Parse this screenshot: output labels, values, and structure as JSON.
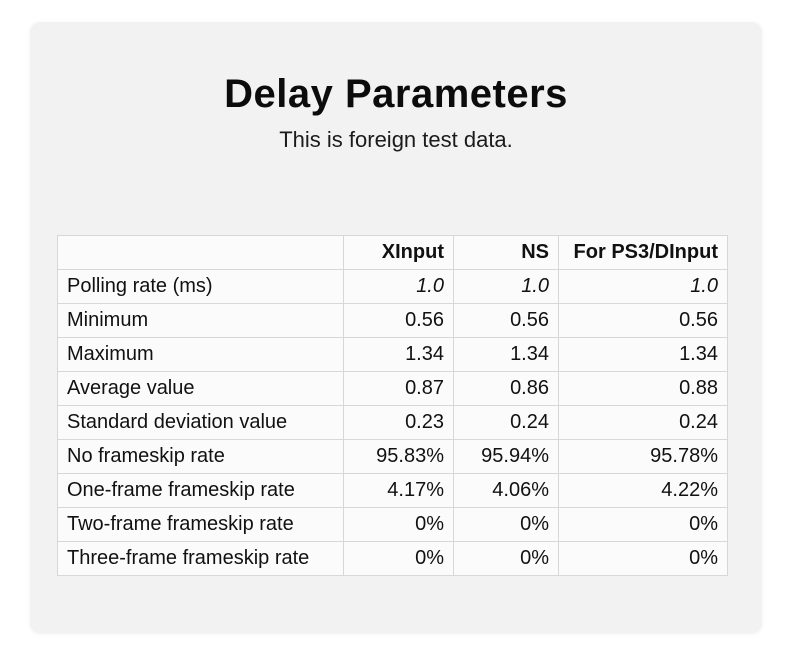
{
  "page": {
    "title": "Delay Parameters",
    "subtitle": "This is foreign test data."
  },
  "colors": {
    "page_background": "#ffffff",
    "panel_background": "#f2f2f2",
    "cell_background": "#fbfbfb",
    "table_border": "#d7d7d7",
    "text": "#111111"
  },
  "table": {
    "columns": [
      "",
      "XInput",
      "NS",
      "For PS3/DInput"
    ],
    "rows": [
      {
        "label": "Polling rate (ms)",
        "values": [
          "1.0",
          "1.0",
          "1.0"
        ]
      },
      {
        "label": "Minimum",
        "values": [
          "0.56",
          "0.56",
          "0.56"
        ]
      },
      {
        "label": "Maximum",
        "values": [
          "1.34",
          "1.34",
          "1.34"
        ]
      },
      {
        "label": "Average value",
        "values": [
          "0.87",
          "0.86",
          "0.88"
        ]
      },
      {
        "label": "Standard deviation value",
        "values": [
          "0.23",
          "0.24",
          "0.24"
        ]
      },
      {
        "label": "No frameskip rate",
        "values": [
          "95.83%",
          "95.94%",
          "95.78%"
        ]
      },
      {
        "label": "One-frame frameskip rate",
        "values": [
          "4.17%",
          "4.06%",
          "4.22%"
        ]
      },
      {
        "label": "Two-frame frameskip rate",
        "values": [
          "0%",
          "0%",
          "0%"
        ]
      },
      {
        "label": "Three-frame frameskip rate",
        "values": [
          "0%",
          "0%",
          "0%"
        ]
      }
    ]
  }
}
